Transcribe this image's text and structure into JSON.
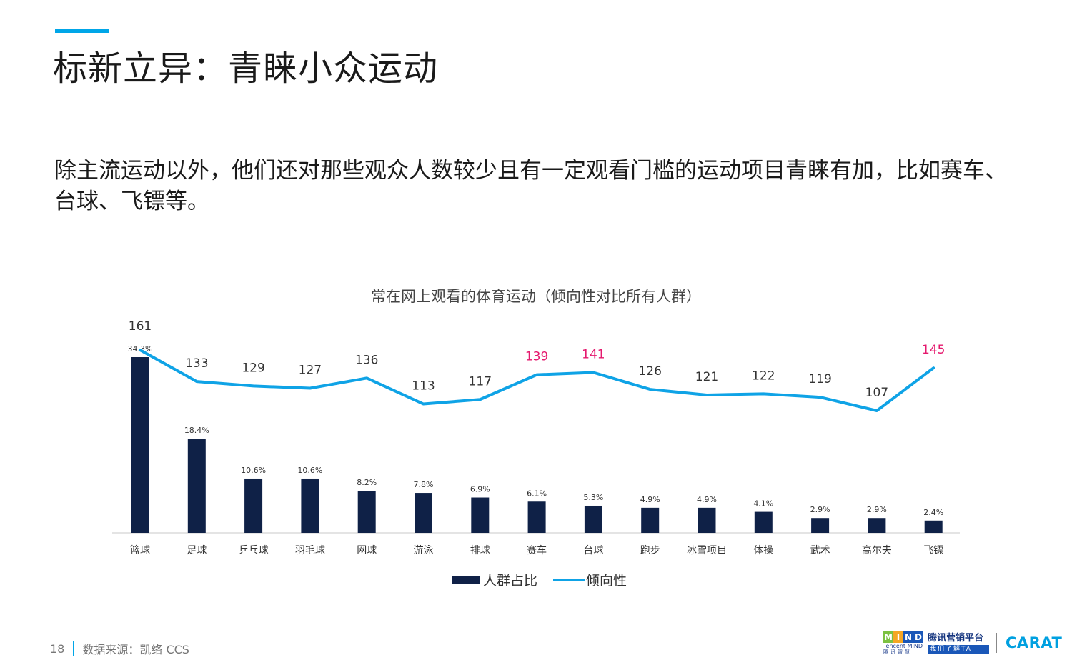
{
  "page": {
    "title": "标新立异：青睐小众运动",
    "intro": "除主流运动以外，他们还对那些观众人数较少且有一定观看门槛的运动项目青睐有加，比如赛车、台球、飞镖等。"
  },
  "chart_data": {
    "type": "bar",
    "title": "常在网上观看的体育运动（倾向性对比所有人群）",
    "categories": [
      "篮球",
      "足球",
      "乒乓球",
      "羽毛球",
      "网球",
      "游泳",
      "排球",
      "赛车",
      "台球",
      "跑步",
      "冰雪项目",
      "体操",
      "武术",
      "高尔夫",
      "飞镖"
    ],
    "series": [
      {
        "name": "人群占比",
        "type": "bar",
        "values": [
          34.3,
          18.4,
          10.6,
          10.6,
          8.2,
          7.8,
          6.9,
          6.1,
          5.3,
          4.9,
          4.9,
          4.1,
          2.9,
          2.9,
          2.4
        ],
        "labels": [
          "34.3%",
          "18.4%",
          "10.6%",
          "10.6%",
          "8.2%",
          "7.8%",
          "6.9%",
          "6.1%",
          "5.3%",
          "4.9%",
          "4.9%",
          "4.1%",
          "2.9%",
          "2.9%",
          "2.4%"
        ],
        "color": "#0f2147"
      },
      {
        "name": "倾向性",
        "type": "line",
        "values": [
          161,
          133,
          129,
          127,
          136,
          113,
          117,
          139,
          141,
          126,
          121,
          122,
          119,
          107,
          145
        ],
        "labels": [
          "161",
          "133",
          "129",
          "127",
          "136",
          "113",
          "117",
          "139",
          "141",
          "126",
          "121",
          "122",
          "119",
          "107",
          "145"
        ],
        "highlighted": [
          "赛车",
          "台球",
          "飞镖"
        ],
        "color": "#0fa3e6",
        "highlight_color": "#e5196e"
      }
    ],
    "legend": "bottom-center",
    "grid": false
  },
  "legend": {
    "bar_label": "人群占比",
    "line_label": "倾向性"
  },
  "footer": {
    "page_number": "18",
    "source": "数据来源：凯络 CCS"
  },
  "logos": {
    "mind": "MIND",
    "mind_sub": "Tencent MIND",
    "mind_sub2": "腾讯智慧",
    "tmp_main": "腾讯营销平台",
    "tmp_sub": "我们了解TA",
    "carat": "CARAT",
    "mind_colors": [
      "#7cc142",
      "#f5a623",
      "#1a57b8",
      "#1a57b8"
    ]
  }
}
